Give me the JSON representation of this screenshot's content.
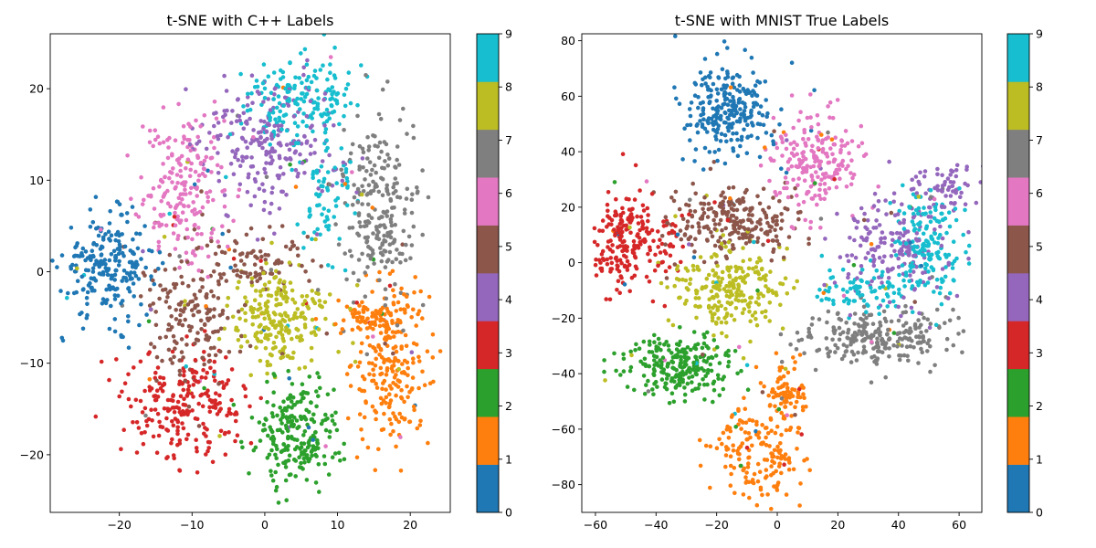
{
  "chart_data": [
    {
      "type": "scatter",
      "title": "t-SNE with C++ Labels",
      "xlabel": "",
      "ylabel": "",
      "xlim": [
        -29.5,
        25.5
      ],
      "ylim": [
        -26.3,
        26.0
      ],
      "xticks": [
        -20,
        -10,
        0,
        10,
        20
      ],
      "yticks": [
        -20,
        -10,
        0,
        10,
        20
      ],
      "grid": false,
      "colorbar": {
        "range": [
          0,
          9
        ],
        "ticks": [
          "0",
          "1",
          "2",
          "3",
          "4",
          "5",
          "6",
          "7",
          "8",
          "9"
        ]
      },
      "clusters": [
        {
          "label": 0,
          "cx": -21.5,
          "cy": 0.5,
          "sx": 3.2,
          "sy": 2.8,
          "n": 230
        },
        {
          "label": 1,
          "cx": 17.5,
          "cy": -10.0,
          "sx": 2.6,
          "sy": 4.5,
          "n": 230
        },
        {
          "label": 1,
          "cx": 14.0,
          "cy": -5.0,
          "sx": 2.0,
          "sy": 1.0,
          "n": 60
        },
        {
          "label": 2,
          "cx": 4.5,
          "cy": -17.5,
          "sx": 3.0,
          "sy": 3.2,
          "n": 230
        },
        {
          "label": 3,
          "cx": -10.5,
          "cy": -14.5,
          "sx": 4.0,
          "sy": 3.0,
          "n": 230
        },
        {
          "label": 4,
          "cx": 0.5,
          "cy": 14.0,
          "sx": 5.0,
          "sy": 3.5,
          "n": 230
        },
        {
          "label": 5,
          "cx": -10.0,
          "cy": -4.0,
          "sx": 3.5,
          "sy": 4.0,
          "n": 170
        },
        {
          "label": 5,
          "cx": 0.0,
          "cy": 1.0,
          "sx": 4.0,
          "sy": 2.0,
          "n": 70
        },
        {
          "label": 6,
          "cx": -11.0,
          "cy": 9.0,
          "sx": 3.0,
          "sy": 4.0,
          "n": 200
        },
        {
          "label": 7,
          "cx": 15.5,
          "cy": 7.0,
          "sx": 2.5,
          "sy": 5.0,
          "n": 230
        },
        {
          "label": 8,
          "cx": 2.0,
          "cy": -5.0,
          "sx": 3.5,
          "sy": 2.5,
          "n": 230
        },
        {
          "label": 9,
          "cx": 5.0,
          "cy": 18.5,
          "sx": 3.5,
          "sy": 2.5,
          "n": 170
        },
        {
          "label": 9,
          "cx": 8.0,
          "cy": 8.0,
          "sx": 2.0,
          "sy": 3.0,
          "n": 70
        }
      ]
    },
    {
      "type": "scatter",
      "title": "t-SNE with MNIST True Labels",
      "xlabel": "",
      "ylabel": "",
      "xlim": [
        -64.5,
        67.5
      ],
      "ylim": [
        -90.0,
        82.5
      ],
      "xticks": [
        -60,
        -40,
        -20,
        0,
        20,
        40,
        60
      ],
      "yticks": [
        -80,
        -60,
        -40,
        -20,
        0,
        20,
        40,
        60,
        80
      ],
      "grid": false,
      "colorbar": {
        "range": [
          0,
          9
        ],
        "ticks": [
          "0",
          "1",
          "2",
          "3",
          "4",
          "5",
          "6",
          "7",
          "8",
          "9"
        ]
      },
      "clusters": [
        {
          "label": 0,
          "cx": -17.0,
          "cy": 55.0,
          "sx": 7.5,
          "sy": 8.5,
          "n": 250
        },
        {
          "label": 1,
          "cx": -5.0,
          "cy": -66.0,
          "sx": 7.5,
          "sy": 9.0,
          "n": 170
        },
        {
          "label": 1,
          "cx": 2.0,
          "cy": -46.0,
          "sx": 3.5,
          "sy": 6.0,
          "n": 70
        },
        {
          "label": 2,
          "cx": -32.0,
          "cy": -37.0,
          "sx": 9.5,
          "sy": 5.5,
          "n": 240
        },
        {
          "label": 3,
          "cx": -48.0,
          "cy": 7.0,
          "sx": 6.5,
          "sy": 9.0,
          "n": 220
        },
        {
          "label": 4,
          "cx": 38.0,
          "cy": 5.0,
          "sx": 9.0,
          "sy": 10.0,
          "n": 170
        },
        {
          "label": 4,
          "cx": 55.0,
          "cy": 28.0,
          "sx": 5.0,
          "sy": 5.0,
          "n": 60
        },
        {
          "label": 5,
          "cx": -16.0,
          "cy": 15.0,
          "sx": 11.0,
          "sy": 6.5,
          "n": 240
        },
        {
          "label": 6,
          "cx": 12.0,
          "cy": 36.0,
          "sx": 7.0,
          "sy": 9.0,
          "n": 200
        },
        {
          "label": 7,
          "cx": 33.0,
          "cy": -27.0,
          "sx": 12.0,
          "sy": 5.0,
          "n": 240
        },
        {
          "label": 8,
          "cx": -15.0,
          "cy": -9.0,
          "sx": 8.5,
          "sy": 7.5,
          "n": 240
        },
        {
          "label": 9,
          "cx": 50.0,
          "cy": 7.0,
          "sx": 5.0,
          "sy": 10.0,
          "n": 160
        },
        {
          "label": 9,
          "cx": 28.0,
          "cy": -10.0,
          "sx": 7.0,
          "sy": 4.0,
          "n": 80
        }
      ]
    }
  ],
  "palette": [
    "#1f77b4",
    "#ff7f0e",
    "#2ca02c",
    "#d62728",
    "#9467bd",
    "#8c564b",
    "#e377c2",
    "#7f7f7f",
    "#bcbd22",
    "#17becf"
  ]
}
